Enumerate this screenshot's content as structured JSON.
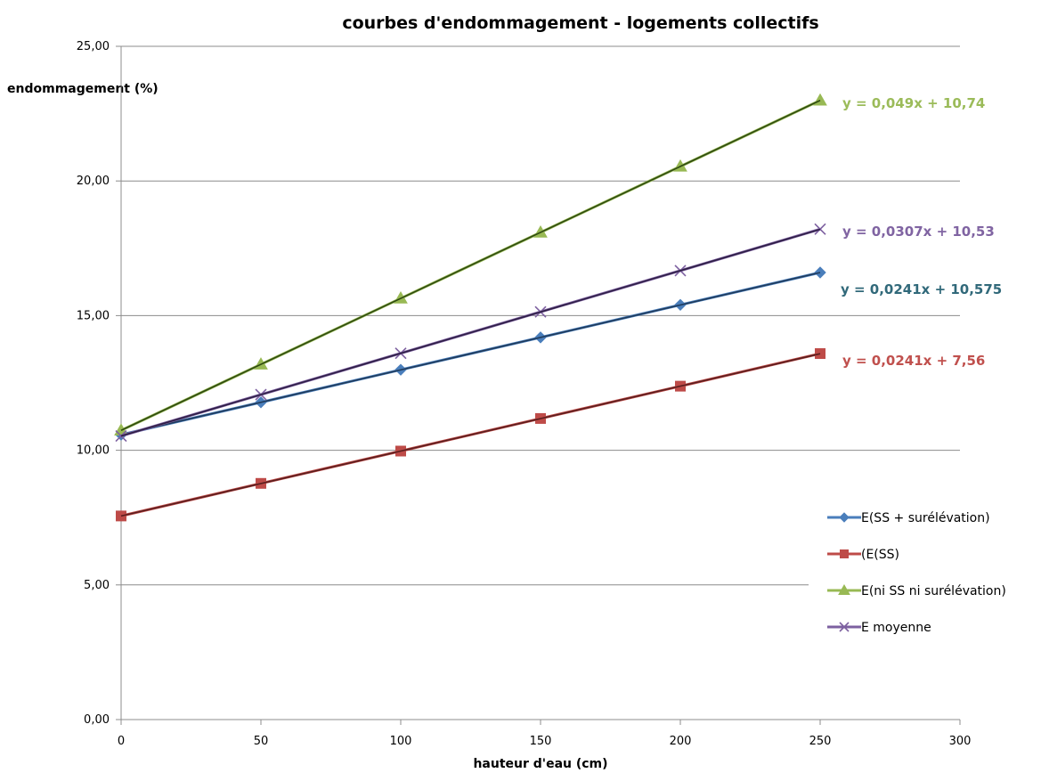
{
  "chart_data": {
    "type": "line",
    "title": "courbes d'endommagement - logements collectifs",
    "xlabel": "hauteur d'eau (cm)",
    "ylabel": "endommagement  (%)",
    "xlim": [
      0,
      300
    ],
    "ylim": [
      0,
      25
    ],
    "x_ticks": [
      0,
      50,
      100,
      150,
      200,
      250,
      300
    ],
    "x_tick_labels": [
      "0",
      "50",
      "100",
      "150",
      "200",
      "250",
      "300"
    ],
    "y_ticks": [
      0,
      5,
      10,
      15,
      20,
      25
    ],
    "y_tick_labels": [
      "0,00",
      "5,00",
      "10,00",
      "15,00",
      "20,00",
      "25,00"
    ],
    "grid": "horizontal",
    "legend_position": "right",
    "x": [
      0,
      50,
      100,
      150,
      200,
      250
    ],
    "series": [
      {
        "name": "E(SS + surélévation)",
        "color": "#4a7ebb",
        "trend_color": "#1f3a5a",
        "marker": "diamond",
        "values": [
          10.575,
          11.78,
          12.99,
          14.19,
          15.4,
          16.6
        ],
        "trendline": {
          "slope": 0.0241,
          "intercept": 10.575
        },
        "equation": "y = 0,0241x + 10,575",
        "equation_color": "#31697a"
      },
      {
        "name": "(E(SS)",
        "color": "#be4b48",
        "trend_color": "#5a1e1e",
        "marker": "square",
        "values": [
          7.56,
          8.77,
          9.97,
          11.18,
          12.38,
          13.59
        ],
        "trendline": {
          "slope": 0.0241,
          "intercept": 7.56
        },
        "equation": "y = 0,0241x + 7,56",
        "equation_color": "#c0504d"
      },
      {
        "name": "E(ni SS ni surélévation)",
        "color": "#98b954",
        "trend_color": "#2e4a10",
        "marker": "triangle",
        "values": [
          10.74,
          13.19,
          15.64,
          18.09,
          20.54,
          22.99
        ],
        "trendline": {
          "slope": 0.049,
          "intercept": 10.74
        },
        "equation": "y = 0,049x + 10,74",
        "equation_color": "#9bbb59"
      },
      {
        "name": "E moyenne",
        "color": "#7d60a0",
        "trend_color": "#2e1f45",
        "marker": "x",
        "values": [
          10.53,
          12.07,
          13.6,
          15.14,
          16.67,
          18.21
        ],
        "trendline": {
          "slope": 0.0307,
          "intercept": 10.53
        },
        "equation": "y = 0,0307x + 10,53",
        "equation_color": "#8064a2"
      }
    ]
  }
}
